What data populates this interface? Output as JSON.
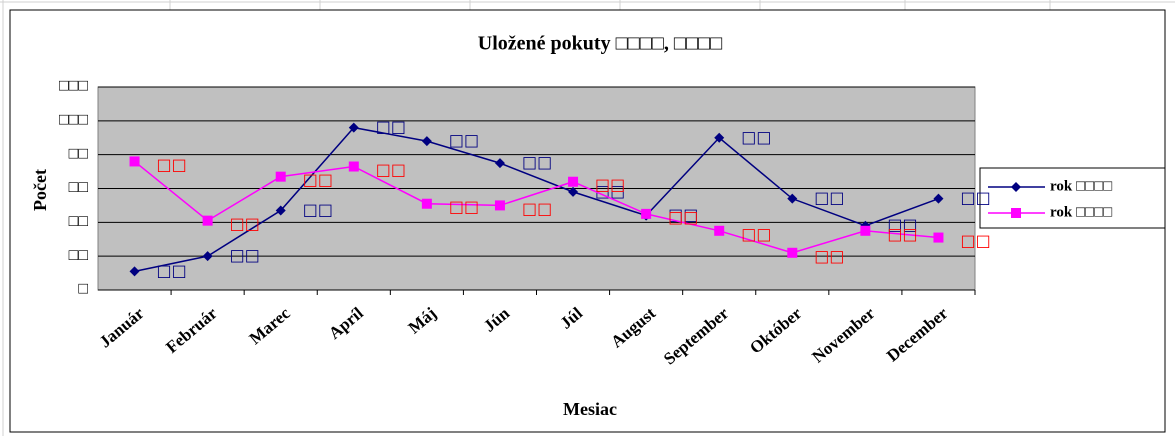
{
  "chart_data": {
    "type": "line",
    "title": "Uložené pokuty □□□□, □□□□",
    "x_label": "Mesiac",
    "y_label": "Počet",
    "categories": [
      "Január",
      "Február",
      "Marec",
      "Apríl",
      "Máj",
      "Jún",
      "Júl",
      "August",
      "September",
      "Október",
      "November",
      "December"
    ],
    "series": [
      {
        "name": "rok □□□□",
        "color": "#000080",
        "label_color": "#000080",
        "values": [
          11,
          20,
          47,
          96,
          88,
          75,
          58,
          44,
          90,
          54,
          38,
          54
        ],
        "value_labels": [
          "□□",
          "□□",
          "□□",
          "□□",
          "□□",
          "□□",
          "□□",
          "□□",
          "□□",
          "□□",
          "□□",
          "□□"
        ]
      },
      {
        "name": "rok □□□□",
        "color": "#ff00ff",
        "label_color": "#ff0000",
        "values": [
          76,
          41,
          67,
          73,
          51,
          50,
          64,
          45,
          35,
          22,
          35,
          31
        ],
        "value_labels": [
          "□□",
          "□□",
          "□□",
          "□□",
          "□□",
          "□□",
          "□□",
          "□□",
          "□□",
          "□□",
          "□□",
          "□□"
        ]
      }
    ],
    "ylim": [
      0,
      120
    ],
    "yticks": [
      {
        "value": 0,
        "label": "□"
      },
      {
        "value": 20,
        "label": "□□"
      },
      {
        "value": 40,
        "label": "□□"
      },
      {
        "value": 60,
        "label": "□□"
      },
      {
        "value": 80,
        "label": "□□"
      },
      {
        "value": 100,
        "label": "□□□"
      },
      {
        "value": 120,
        "label": "□□□"
      }
    ],
    "grid": true,
    "legend": "right"
  }
}
